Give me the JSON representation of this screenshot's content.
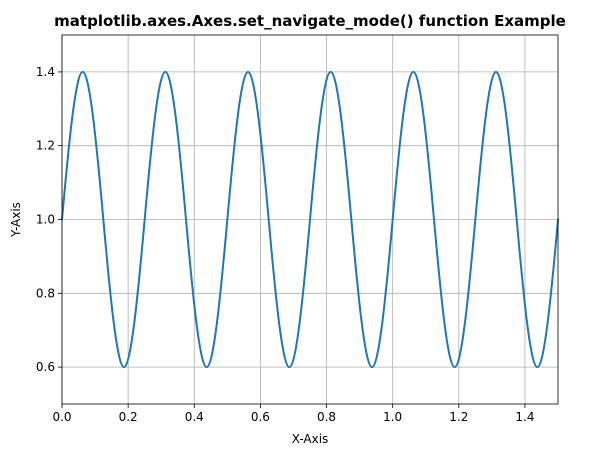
{
  "chart_data": {
    "type": "line",
    "title": "matplotlib.axes.Axes.set_navigate_mode() function Example",
    "xlabel": "X-Axis",
    "ylabel": "Y-Axis",
    "xlim": [
      0.0,
      1.5
    ],
    "ylim": [
      0.5,
      1.5
    ],
    "xticks": [
      "0.0",
      "0.2",
      "0.4",
      "0.6",
      "0.8",
      "1.0",
      "1.2",
      "1.4"
    ],
    "yticks": [
      "0.6",
      "0.8",
      "1.0",
      "1.2",
      "1.4"
    ],
    "grid": true,
    "line_color": "#1f77b4",
    "series": [
      {
        "x": [
          0.0,
          0.0625,
          0.125,
          0.1875,
          0.25,
          0.3125,
          0.375,
          0.4375,
          0.5,
          0.5625,
          0.625,
          0.6875,
          0.75,
          0.8125,
          0.875,
          0.9375,
          1.0,
          1.0625,
          1.125,
          1.1875,
          1.25,
          1.3125,
          1.375,
          1.4375,
          1.5
        ],
        "values": [
          1.0,
          1.4,
          1.0,
          0.6,
          1.0,
          1.4,
          1.0,
          0.6,
          1.0,
          1.4,
          1.0,
          0.6,
          1.0,
          1.4,
          1.0,
          0.6,
          1.0,
          1.4,
          1.0,
          0.6,
          1.0,
          1.4,
          1.0,
          0.6,
          1.0
        ]
      }
    ]
  }
}
